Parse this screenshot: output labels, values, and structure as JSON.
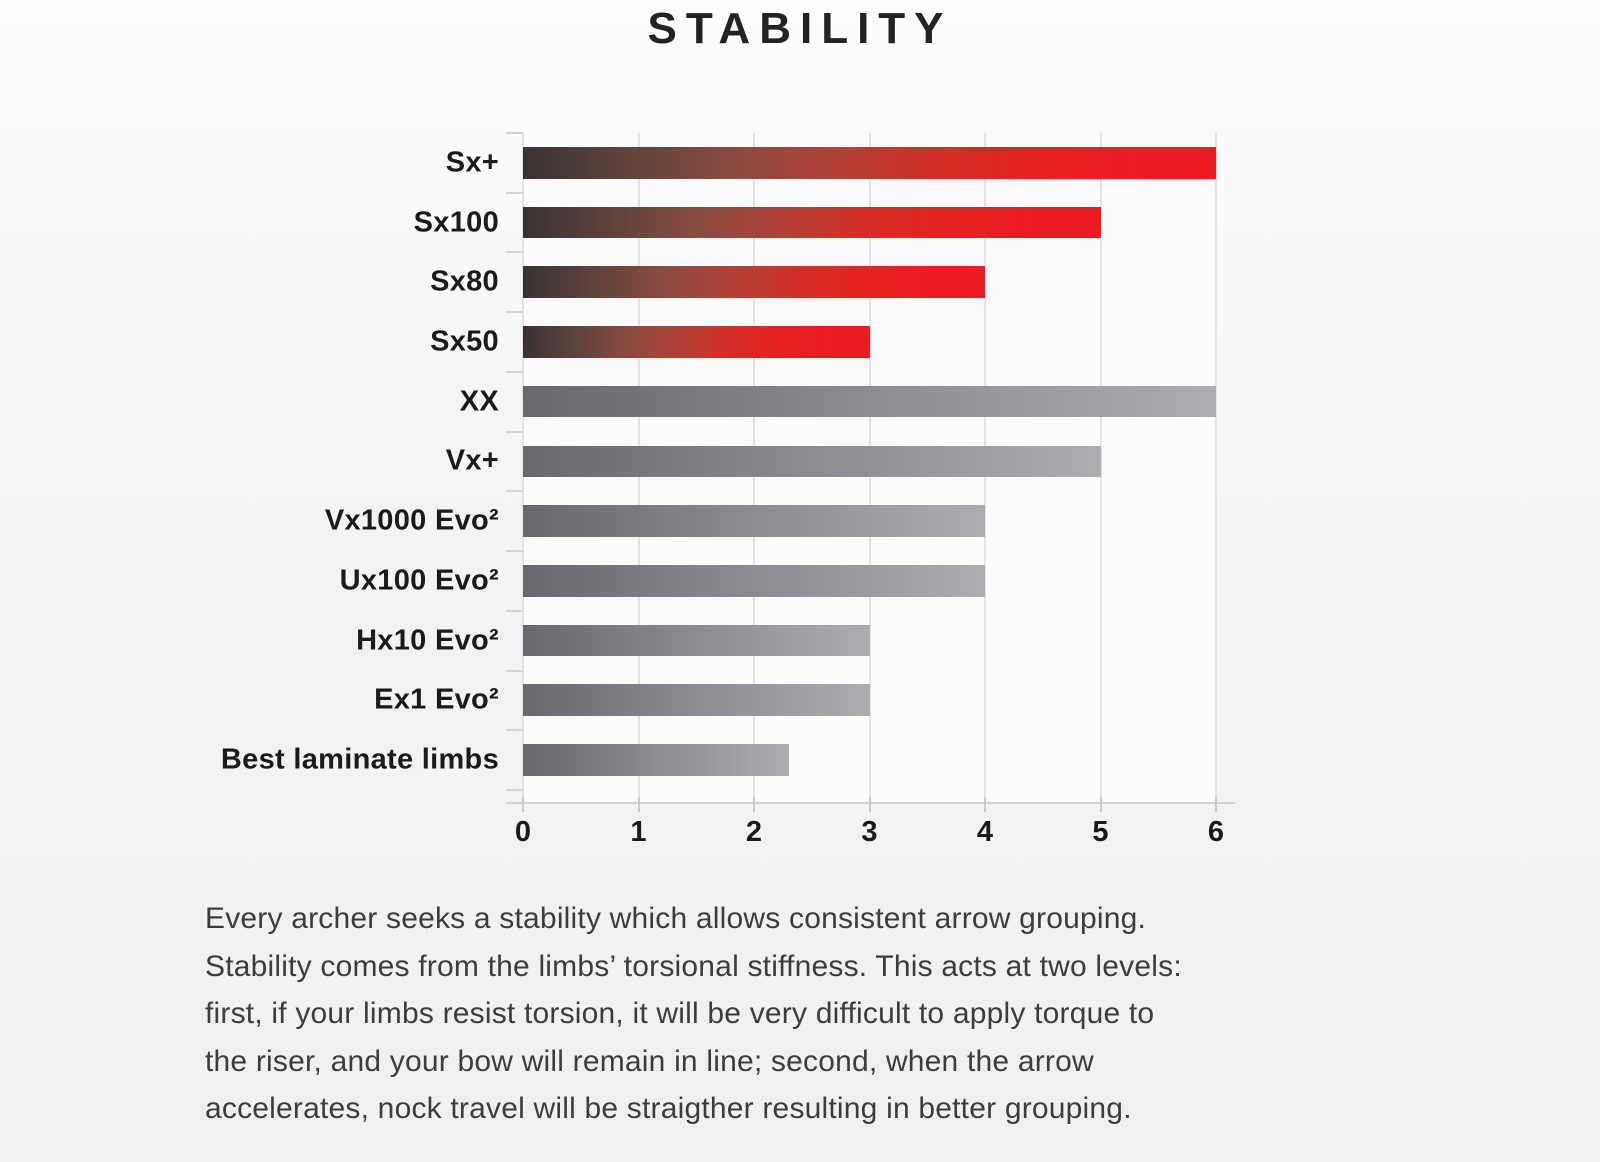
{
  "title": "STABILITY",
  "chart_data": {
    "type": "bar",
    "orientation": "horizontal",
    "title": "STABILITY",
    "xlabel": "",
    "ylabel": "",
    "xlim": [
      0,
      6
    ],
    "x_ticks": [
      0,
      1,
      2,
      3,
      4,
      5,
      6
    ],
    "grid": true,
    "legend": false,
    "categories": [
      "Sx+",
      "Sx100",
      "Sx80",
      "Sx50",
      "XX",
      "Vx+",
      "Vx1000 Evo²",
      "Ux100 Evo²",
      "Hx10 Evo²",
      "Ex1 Evo²",
      "Best laminate limbs"
    ],
    "values": [
      6,
      5,
      4,
      3,
      6,
      5,
      4,
      4,
      3,
      3,
      2.3
    ],
    "bar_styles": [
      "red",
      "red",
      "red",
      "red",
      "gray",
      "gray",
      "gray",
      "gray",
      "gray",
      "gray",
      "gray"
    ],
    "colors": {
      "red_gradient_start": "#393334",
      "red_gradient_end": "#ec1b22",
      "gray_gradient_start": "#67696e",
      "gray_gradient_end": "#abadb1",
      "gridline": "#e3e3e5",
      "axis": "#d4d4d6",
      "label_text": "#1b1b1b"
    }
  },
  "description": {
    "lines": [
      "Every archer seeks a stability which allows consistent arrow grouping.",
      "Stability comes from the limbs’ torsional stiffness. This acts at two levels:",
      "first, if your limbs resist torsion, it will be very difficult to apply torque to",
      "the riser, and your bow will remain in line; second, when the arrow",
      "accelerates, nock travel will be straigther resulting in better grouping."
    ]
  }
}
